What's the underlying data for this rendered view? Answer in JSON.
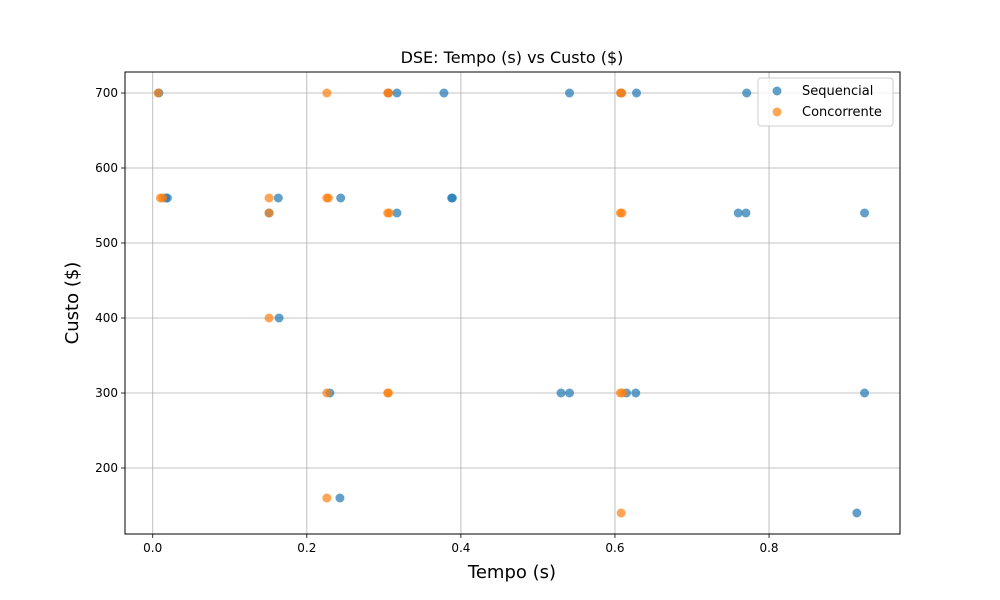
{
  "chart_data": {
    "type": "scatter",
    "title": "DSE: Tempo (s) vs Custo ($)",
    "xlabel": "Tempo (s)",
    "ylabel": "Custo ($)",
    "xlim": [
      -0.036,
      0.97
    ],
    "ylim": [
      112,
      728
    ],
    "xticks": [
      0.0,
      0.2,
      0.4,
      0.6,
      0.8
    ],
    "xtick_labels": [
      "0.0",
      "0.2",
      "0.4",
      "0.6",
      "0.8"
    ],
    "yticks": [
      200,
      300,
      400,
      500,
      600,
      700
    ],
    "ytick_labels": [
      "200",
      "300",
      "400",
      "500",
      "600",
      "700"
    ],
    "grid": true,
    "legend": "top-right",
    "series": [
      {
        "name": "Sequencial",
        "color": "#1f77b4",
        "points": [
          [
            0.008,
            700
          ],
          [
            0.017,
            560
          ],
          [
            0.019,
            560
          ],
          [
            0.151,
            540
          ],
          [
            0.163,
            560
          ],
          [
            0.164,
            400
          ],
          [
            0.23,
            300
          ],
          [
            0.243,
            160
          ],
          [
            0.244,
            560
          ],
          [
            0.306,
            700
          ],
          [
            0.317,
            700
          ],
          [
            0.317,
            540
          ],
          [
            0.378,
            700
          ],
          [
            0.388,
            560
          ],
          [
            0.389,
            560
          ],
          [
            0.53,
            300
          ],
          [
            0.541,
            300
          ],
          [
            0.541,
            700
          ],
          [
            0.608,
            700
          ],
          [
            0.615,
            300
          ],
          [
            0.627,
            300
          ],
          [
            0.628,
            700
          ],
          [
            0.76,
            540
          ],
          [
            0.77,
            540
          ],
          [
            0.771,
            700
          ],
          [
            0.914,
            140
          ],
          [
            0.924,
            540
          ],
          [
            0.924,
            300
          ]
        ]
      },
      {
        "name": "Concorrente",
        "color": "#ff7f0e",
        "points": [
          [
            0.007,
            700
          ],
          [
            0.01,
            560
          ],
          [
            0.013,
            560
          ],
          [
            0.151,
            560
          ],
          [
            0.151,
            540
          ],
          [
            0.151,
            400
          ],
          [
            0.226,
            700
          ],
          [
            0.226,
            560
          ],
          [
            0.228,
            560
          ],
          [
            0.226,
            300
          ],
          [
            0.226,
            160
          ],
          [
            0.305,
            700
          ],
          [
            0.306,
            700
          ],
          [
            0.305,
            540
          ],
          [
            0.307,
            540
          ],
          [
            0.305,
            300
          ],
          [
            0.306,
            300
          ],
          [
            0.607,
            700
          ],
          [
            0.609,
            700
          ],
          [
            0.607,
            540
          ],
          [
            0.609,
            540
          ],
          [
            0.607,
            300
          ],
          [
            0.61,
            300
          ],
          [
            0.608,
            140
          ]
        ]
      }
    ]
  }
}
